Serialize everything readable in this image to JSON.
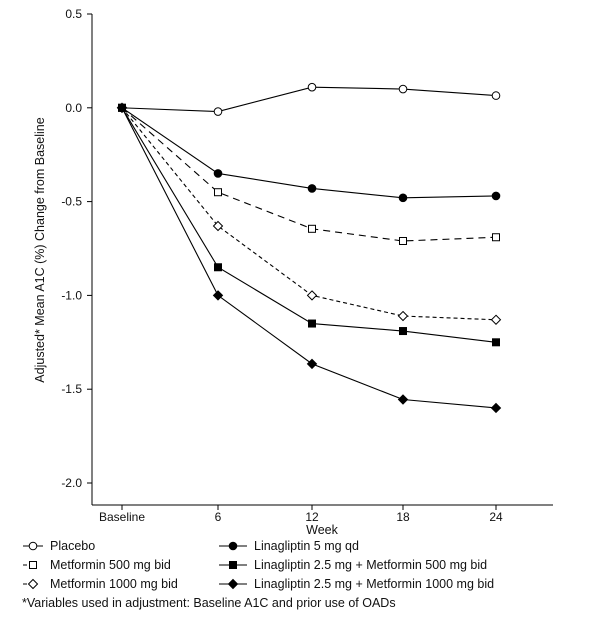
{
  "chart_data": {
    "type": "line",
    "title": "",
    "xlabel": "Week",
    "ylabel": "Adjusted* Mean A1C (%) Change from Baseline",
    "categories": [
      "Baseline",
      "6",
      "12",
      "18",
      "24"
    ],
    "ylim": [
      -2.0,
      0.5
    ],
    "yticks": [
      "0.5",
      "0.0",
      "-0.5",
      "-1.0",
      "-1.5",
      "-2.0"
    ],
    "grid": false,
    "legend": "bottom",
    "series": [
      {
        "name": "Placebo",
        "values": [
          0,
          -0.02,
          0.11,
          0.1,
          0.065
        ],
        "marker": "open-circle",
        "line": "solid"
      },
      {
        "name": "Metformin 500 mg bid",
        "values": [
          0,
          -0.45,
          -0.645,
          -0.71,
          -0.69
        ],
        "marker": "open-square",
        "line": "long-dash"
      },
      {
        "name": "Metformin 1000 mg bid",
        "values": [
          0,
          -0.63,
          -1.0,
          -1.11,
          -1.13
        ],
        "marker": "open-diamond",
        "line": "short-dash"
      },
      {
        "name": "Linagliptin 5 mg qd",
        "values": [
          0,
          -0.35,
          -0.43,
          -0.48,
          -0.47
        ],
        "marker": "filled-circle",
        "line": "solid"
      },
      {
        "name": "Linagliptin 2.5 mg + Metformin 500 mg bid",
        "values": [
          0,
          -0.85,
          -1.15,
          -1.19,
          -1.25
        ],
        "marker": "filled-square",
        "line": "solid"
      },
      {
        "name": "Linagliptin 2.5 mg + Metformin 1000 mg bid",
        "values": [
          0,
          -1.0,
          -1.365,
          -1.555,
          -1.6
        ],
        "marker": "filled-diamond",
        "line": "solid"
      }
    ],
    "footnote": "*Variables used in adjustment: Baseline A1C and prior use of OADs"
  }
}
